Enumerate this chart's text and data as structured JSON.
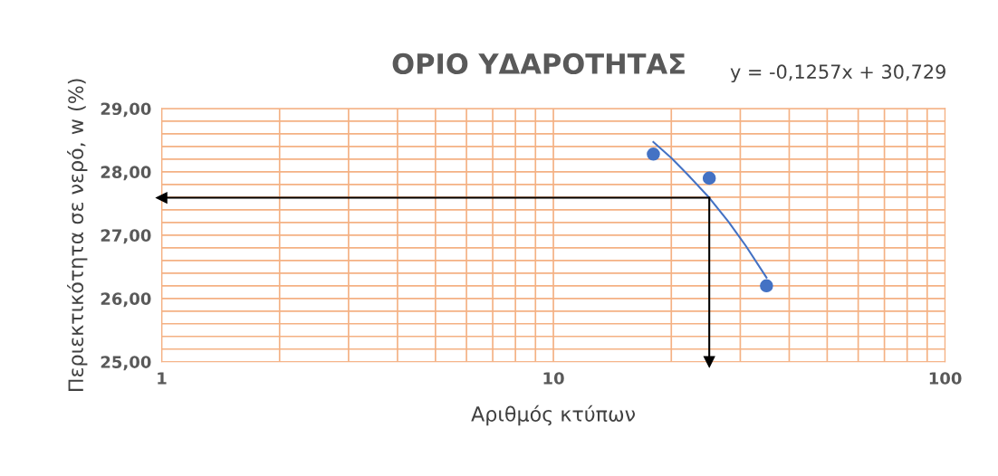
{
  "chart_data": {
    "type": "scatter",
    "title": "ΟΡΙΟ ΥΔΑΡΟΤΗΤΑΣ",
    "xlabel": "Αριθμός κτύπων",
    "ylabel": "Περιεκτικότητα σε νερό, w (%)",
    "annotations": [
      "y = -0,1257x + 30,729"
    ],
    "log": "x",
    "grid": true,
    "marker": "circle",
    "xlim": [
      1,
      100
    ],
    "ylim": [
      25,
      29
    ],
    "xticks": [
      1,
      {
        "value": 2,
        "label": null
      },
      {
        "value": 3,
        "label": null
      },
      {
        "value": 4,
        "label": null
      },
      {
        "value": 5,
        "label": null
      },
      {
        "value": 6,
        "label": null
      },
      {
        "value": 7,
        "label": null
      },
      {
        "value": 8,
        "label": null
      },
      {
        "value": 9,
        "label": null
      },
      10,
      {
        "value": 20,
        "label": null
      },
      {
        "value": 30,
        "label": null
      },
      {
        "value": 40,
        "label": null
      },
      {
        "value": 50,
        "label": null
      },
      {
        "value": 60,
        "label": null
      },
      {
        "value": 70,
        "label": null
      },
      {
        "value": 80,
        "label": null
      },
      {
        "value": 90,
        "label": null
      },
      100
    ],
    "yticks": [
      {
        "value": 25,
        "label": "25,00"
      },
      {
        "value": 25.2,
        "label": null
      },
      {
        "value": 25.4,
        "label": null
      },
      {
        "value": 25.6,
        "label": null
      },
      {
        "value": 25.8,
        "label": null
      },
      {
        "value": 26,
        "label": "26,00"
      },
      {
        "value": 26.2,
        "label": null
      },
      {
        "value": 26.4,
        "label": null
      },
      {
        "value": 26.6,
        "label": null
      },
      {
        "value": 26.8,
        "label": null
      },
      {
        "value": 27,
        "label": "27,00"
      },
      {
        "value": 27.2,
        "label": null
      },
      {
        "value": 27.4,
        "label": null
      },
      {
        "value": 27.6,
        "label": null
      },
      {
        "value": 27.8,
        "label": null
      },
      {
        "value": 28,
        "label": "28,00"
      },
      {
        "value": 28.2,
        "label": null
      },
      {
        "value": 28.4,
        "label": null
      },
      {
        "value": 28.6,
        "label": null
      },
      {
        "value": 28.8,
        "label": null
      },
      {
        "value": 29,
        "label": "29,00"
      }
    ],
    "series": [
      {
        "color": "#4472c4",
        "x": [
          18,
          25,
          35
        ],
        "values": [
          28.28,
          27.9,
          26.2
        ]
      },
      {
        "type": "line",
        "color": "#4472c4",
        "marker": "none",
        "x": [
          18,
          20,
          22,
          25,
          28,
          31,
          35
        ],
        "values": [
          28.47,
          28.22,
          27.96,
          27.59,
          27.21,
          26.83,
          26.33
        ]
      },
      {
        "type": "line",
        "color": "#000000",
        "marker": "triangle",
        "x": [
          25,
          1
        ],
        "values": [
          27.59,
          27.59
        ]
      },
      {
        "type": "line",
        "color": "#000000",
        "marker": "triangle",
        "x": [
          25,
          25
        ],
        "values": [
          27.59,
          25
        ]
      }
    ]
  }
}
